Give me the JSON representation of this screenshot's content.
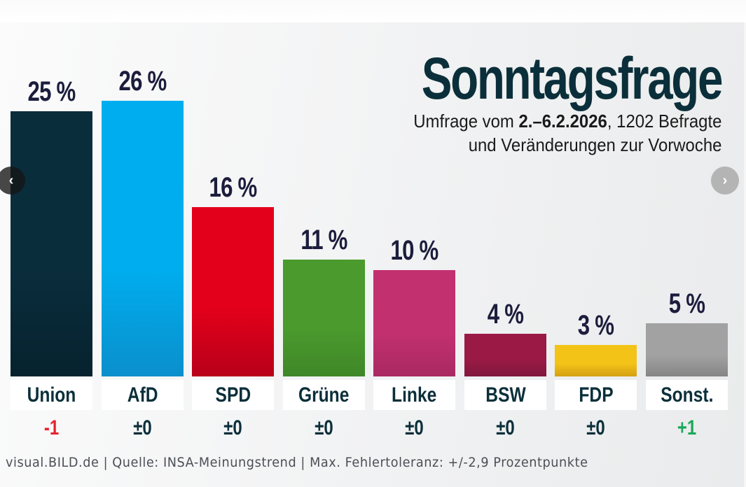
{
  "navigation": {
    "prev_icon": "‹",
    "next_icon": "›"
  },
  "header": {
    "title": "Sonntagsfrage",
    "subtitle_prefix": "Umfrage vom ",
    "subtitle_date": "2.–6.2.2026",
    "subtitle_suffix": ", 1202 Befragte",
    "subtitle_line2": "und Veränderungen zur Vorwoche"
  },
  "footer": {
    "text": "visual.BILD.de | Quelle: INSA-Meinungstrend | Max. Fehlertoleranz: +/-2,9 Prozentpunkte"
  },
  "colors": {
    "title": "#0b2f3a",
    "negative_change": "#e5232b",
    "neutral_change": "#0b2f3a",
    "positive_change": "#1aa85a"
  },
  "chart_data": {
    "type": "bar",
    "title": "Sonntagsfrage",
    "subtitle": "Umfrage vom 2.–6.2.2026, 1202 Befragte und Veränderungen zur Vorwoche",
    "xlabel": "",
    "ylabel": "",
    "ylim": [
      0,
      26
    ],
    "grid": false,
    "categories": [
      "Union",
      "AfD",
      "SPD",
      "Grüne",
      "Linke",
      "BSW",
      "FDP",
      "Sonst."
    ],
    "values": [
      25,
      26,
      16,
      11,
      10,
      4,
      3,
      5
    ],
    "value_labels": [
      "25 %",
      "26 %",
      "16 %",
      "11 %",
      "10 %",
      "4 %",
      "3 %",
      "5 %"
    ],
    "changes": [
      -1,
      0,
      0,
      0,
      0,
      0,
      0,
      1
    ],
    "change_labels": [
      "-1",
      "±0",
      "±0",
      "±0",
      "±0",
      "±0",
      "±0",
      "+1"
    ],
    "bar_colors": [
      [
        "#0a2d3c",
        "#06222e"
      ],
      [
        "#00aeef",
        "#0a8fcc"
      ],
      [
        "#e2001a",
        "#b8001a"
      ],
      [
        "#4a9a2e",
        "#3f8727"
      ],
      [
        "#c2306f",
        "#a92962"
      ],
      [
        "#9a1a45",
        "#80173c"
      ],
      [
        "#f3c317",
        "#d4a012"
      ],
      [
        "#a2a2a2",
        "#858585"
      ]
    ],
    "source": "visual.BILD.de | Quelle: INSA-Meinungstrend | Max. Fehlertoleranz: +/-2,9 Prozentpunkte"
  }
}
